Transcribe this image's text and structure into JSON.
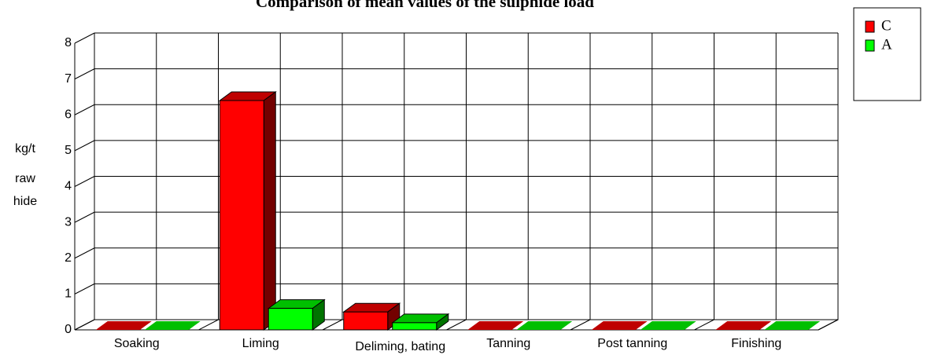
{
  "chart_data": {
    "type": "bar3d",
    "title": "Comparison of mean values of the sulphide load",
    "y_label": [
      "kg/t",
      "raw",
      "hide"
    ],
    "categories": [
      "Soaking",
      "Liming",
      "Deliming, bating",
      "Tanning",
      "Post tanning",
      "Finishing"
    ],
    "series": [
      {
        "name": "C",
        "color": "#ff0000",
        "values": [
          0,
          6.4,
          0.5,
          0,
          0,
          0
        ]
      },
      {
        "name": "A",
        "color": "#00ff00",
        "values": [
          0,
          0.6,
          0.2,
          0,
          0,
          0
        ]
      }
    ],
    "ylim": [
      0,
      8
    ],
    "yticks": [
      0,
      1,
      2,
      3,
      4,
      5,
      6,
      7,
      8
    ],
    "grid": true,
    "legend": "top-right"
  }
}
